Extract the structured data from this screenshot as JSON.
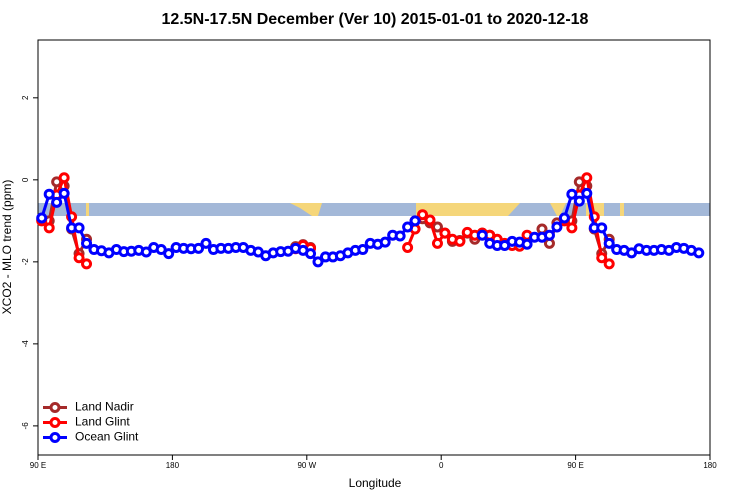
{
  "chart_data": {
    "type": "line",
    "title": "12.5N-17.5N December (Ver 10)   2015-01-01 to 2020-12-18",
    "x_label": "Longitude",
    "y_label": "XCO2 - MLO trend (ppm)",
    "xlim": [
      90,
      540
    ],
    "ylim": [
      -6.71,
      3.41
    ],
    "xticks": [
      {
        "value": 90,
        "label": "90 E"
      },
      180,
      {
        "value": 270,
        "label": "90 W"
      },
      {
        "value": 360,
        "label": "0"
      },
      {
        "value": 450,
        "label": "90 E"
      },
      {
        "value": 540,
        "label": "180"
      }
    ],
    "yticks": [
      -6,
      -4,
      -2,
      0,
      2
    ],
    "legend": "bottom-left",
    "series": [
      {
        "name": "Land Nadir",
        "color": "#a52a2a",
        "x": [
          92.5,
          97.5,
          102.5,
          107.5,
          112.5,
          117.5,
          122.5,
          190,
          262.5,
          267.5,
          272.5,
          300,
          342.5,
          347.5,
          352.5,
          357.5,
          362.5,
          367.5,
          372.5,
          377.5,
          382.5,
          387.5,
          392.5,
          397.5,
          415,
          427.5,
          432.5,
          437.5,
          442.5,
          447.5,
          452.5,
          457.5,
          462.5,
          467.5,
          472.5
        ],
        "values": [
          -0.97,
          -1.0,
          -0.05,
          -0.15,
          -1.2,
          -1.8,
          -1.45,
          null,
          -1.63,
          -1.58,
          -1.65,
          null,
          -1.0,
          -0.95,
          -1.05,
          -1.15,
          -1.3,
          -1.5,
          -1.48,
          -1.3,
          -1.45,
          -1.3,
          -1.35,
          -1.5,
          null,
          -1.2,
          -1.55,
          -1.05,
          -0.97,
          -1.0,
          -0.05,
          -0.15,
          -1.2,
          -1.8,
          -1.45
        ]
      },
      {
        "name": "Land Glint",
        "color": "#ff0000",
        "x": [
          92.5,
          97.5,
          102.5,
          107.5,
          112.5,
          117.5,
          122.5,
          190,
          262.5,
          267.5,
          272.5,
          300,
          337.5,
          342.5,
          347.5,
          352.5,
          357.5,
          362.5,
          367.5,
          372.5,
          377.5,
          382.5,
          387.5,
          392.5,
          397.5,
          402.5,
          407.5,
          412.5,
          417.5,
          430,
          442.5,
          447.5,
          452.5,
          457.5,
          462.5,
          467.5,
          472.5
        ],
        "values": [
          -1.0,
          -1.17,
          -0.37,
          0.05,
          -0.9,
          -1.9,
          -2.05,
          null,
          -1.68,
          -1.6,
          -1.67,
          null,
          -1.65,
          -1.2,
          -0.85,
          -0.98,
          -1.55,
          -1.3,
          -1.45,
          -1.5,
          -1.28,
          -1.35,
          -1.3,
          -1.35,
          -1.45,
          -1.55,
          -1.6,
          -1.62,
          -1.35,
          null,
          -1.0,
          -1.17,
          -0.37,
          0.05,
          -0.9,
          -1.9,
          -2.05
        ]
      },
      {
        "name": "Ocean Glint",
        "color": "#0000ff",
        "x": [
          92.5,
          97.5,
          102.5,
          107.5,
          112.5,
          117.5,
          122.5,
          127.5,
          132.5,
          137.5,
          142.5,
          147.5,
          152.5,
          157.5,
          162.5,
          167.5,
          172.5,
          177.5,
          182.5,
          187.5,
          192.5,
          197.5,
          202.5,
          207.5,
          212.5,
          217.5,
          222.5,
          227.5,
          232.5,
          237.5,
          242.5,
          247.5,
          252.5,
          257.5,
          262.5,
          267.5,
          272.5,
          277.5,
          282.5,
          287.5,
          292.5,
          297.5,
          302.5,
          307.5,
          312.5,
          317.5,
          322.5,
          327.5,
          332.5,
          337.5,
          342.5,
          365,
          387.5,
          392.5,
          397.5,
          402.5,
          407.5,
          412.5,
          417.5,
          422.5,
          427.5,
          432.5,
          437.5,
          442.5,
          447.5,
          452.5,
          457.5,
          462.5,
          467.5,
          472.5,
          477.5,
          482.5,
          487.5,
          492.5,
          497.5,
          502.5,
          507.5,
          512.5,
          517.5,
          522.5,
          527.5,
          532.5
        ],
        "values": [
          -0.93,
          -0.35,
          -0.55,
          -0.33,
          -1.17,
          -1.17,
          -1.55,
          -1.7,
          -1.73,
          -1.78,
          -1.7,
          -1.75,
          -1.74,
          -1.72,
          -1.76,
          -1.65,
          -1.7,
          -1.8,
          -1.65,
          -1.67,
          -1.68,
          -1.67,
          -1.55,
          -1.7,
          -1.67,
          -1.67,
          -1.65,
          -1.65,
          -1.72,
          -1.76,
          -1.85,
          -1.78,
          -1.75,
          -1.74,
          -1.67,
          -1.72,
          -1.8,
          -2.0,
          -1.88,
          -1.88,
          -1.85,
          -1.78,
          -1.72,
          -1.7,
          -1.55,
          -1.57,
          -1.52,
          -1.35,
          -1.37,
          -1.15,
          -1.0,
          null,
          -1.35,
          -1.55,
          -1.6,
          -1.6,
          -1.5,
          -1.52,
          -1.57,
          -1.4,
          -1.4,
          -1.35,
          -1.15,
          -0.93,
          -0.35,
          -0.52,
          -0.33,
          -1.17,
          -1.17,
          -1.55,
          -1.7,
          -1.72,
          -1.78,
          -1.68,
          -1.72,
          -1.72,
          -1.7,
          -1.72,
          -1.65,
          -1.67,
          -1.72,
          -1.78
        ]
      }
    ]
  }
}
